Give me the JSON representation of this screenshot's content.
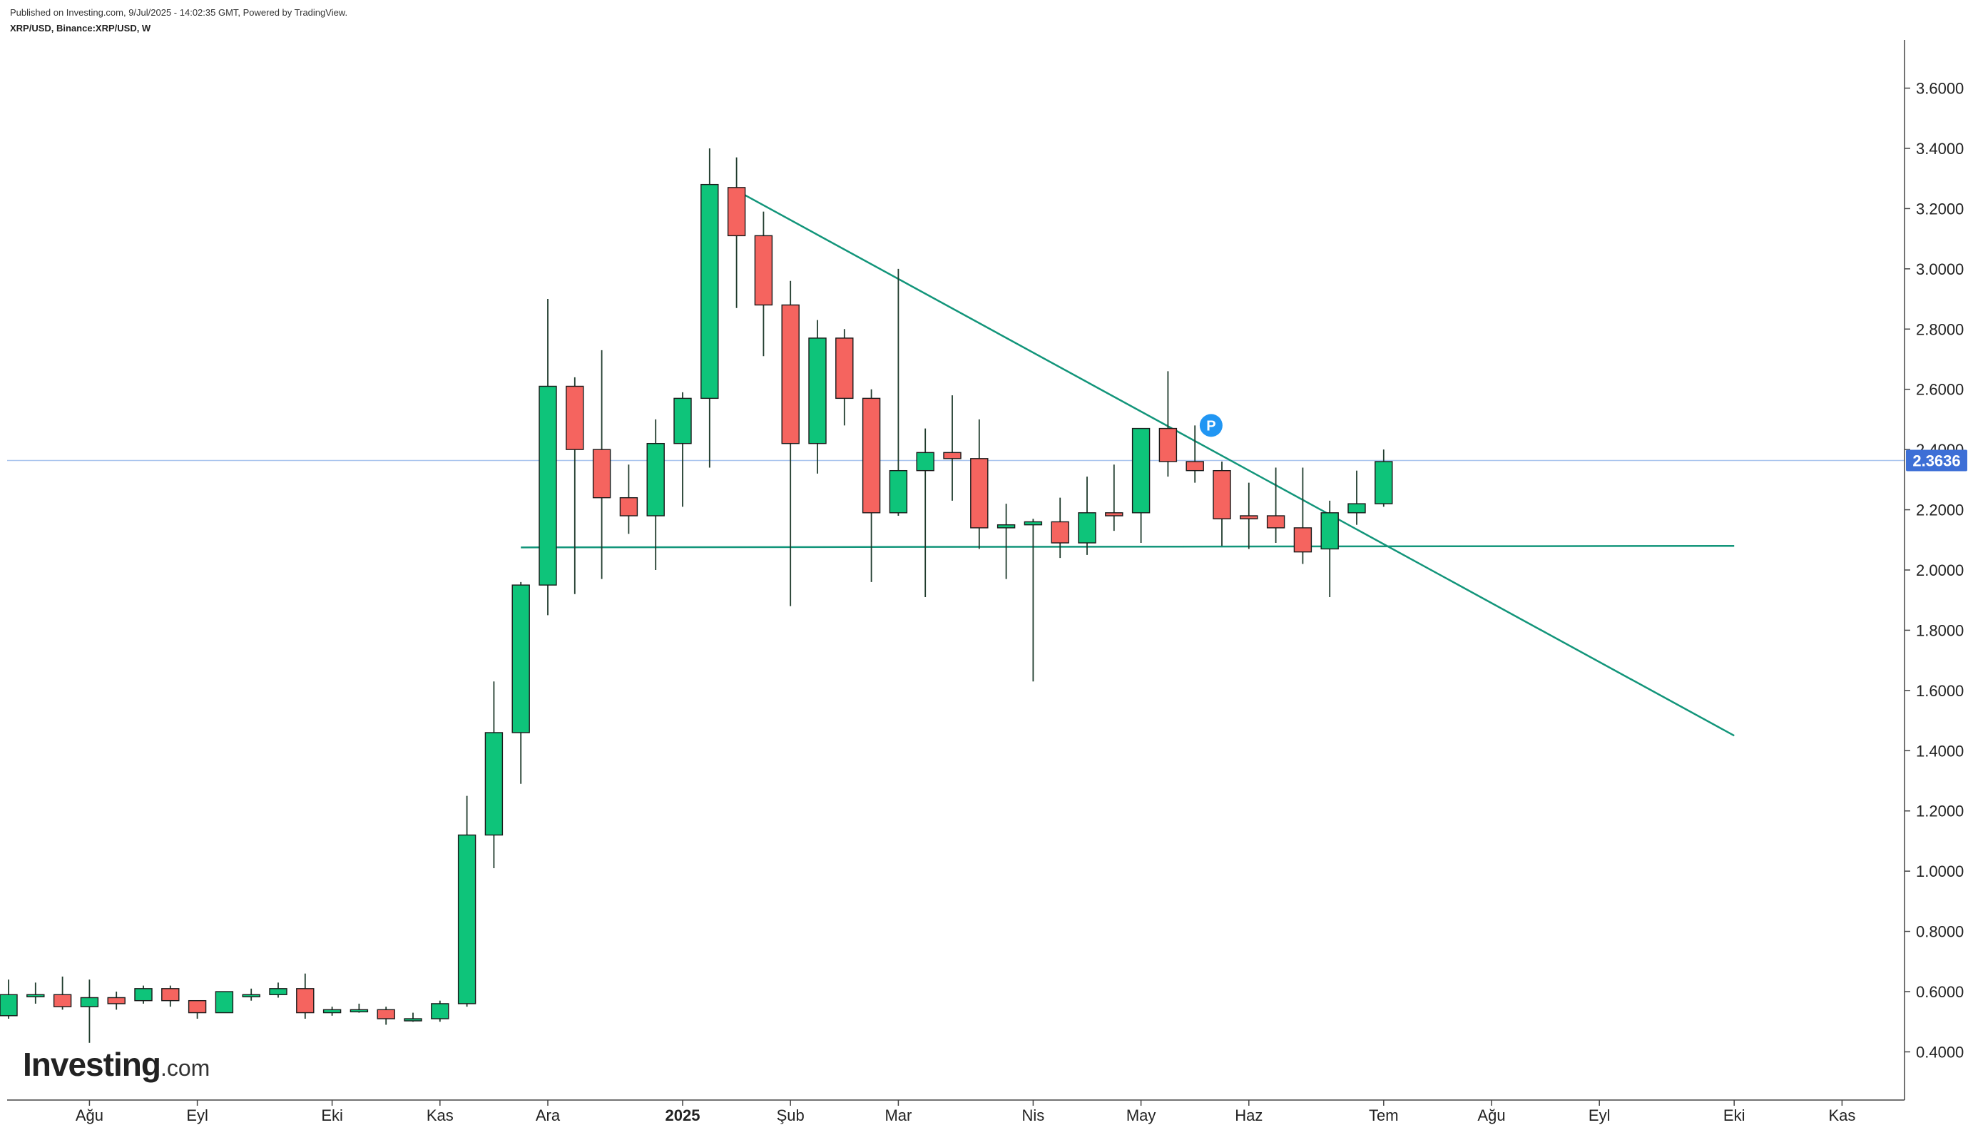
{
  "header": {
    "published": "Published on Investing.com, 9/Jul/2025 - 14:02:35 GMT, Powered by TradingView.",
    "symbol": "XRP/USD, Binance:XRP/USD, W"
  },
  "logo": {
    "brand": "Investing",
    "domain": ".com"
  },
  "colors": {
    "up": "#0ec47a",
    "down": "#f5645f",
    "wick": "#1f3b2c",
    "trendline": "#12957a",
    "price_line": "#a9c4ee",
    "price_tag": "#3d6fd6",
    "marker": "#2196f3"
  },
  "chart_data": {
    "type": "candlestick",
    "interval": "W",
    "ylim": [
      0.24,
      3.76
    ],
    "y_ticks": [
      "3.6000",
      "3.4000",
      "3.2000",
      "3.0000",
      "2.8000",
      "2.6000",
      "2.4000",
      "2.2000",
      "2.0000",
      "1.8000",
      "1.6000",
      "1.4000",
      "1.2000",
      "1.0000",
      "0.8000",
      "0.6000",
      "0.4000"
    ],
    "x_labels": [
      {
        "label": "Ağu",
        "week": 3.0,
        "bold": false
      },
      {
        "label": "Eyl",
        "week": 7.0,
        "bold": false
      },
      {
        "label": "Eki",
        "week": 12.0,
        "bold": false
      },
      {
        "label": "Kas",
        "week": 16.0,
        "bold": false
      },
      {
        "label": "Ara",
        "week": 20.0,
        "bold": false
      },
      {
        "label": "2025",
        "week": 25.0,
        "bold": true
      },
      {
        "label": "Şub",
        "week": 29.0,
        "bold": false
      },
      {
        "label": "Mar",
        "week": 33.0,
        "bold": false
      },
      {
        "label": "Nis",
        "week": 38.0,
        "bold": false
      },
      {
        "label": "May",
        "week": 42.0,
        "bold": false
      },
      {
        "label": "Haz",
        "week": 46.0,
        "bold": false
      },
      {
        "label": "Tem",
        "week": 51.0,
        "bold": false
      },
      {
        "label": "Ağu",
        "week": 55.0,
        "bold": false
      },
      {
        "label": "Eyl",
        "week": 59.0,
        "bold": false
      },
      {
        "label": "Eki",
        "week": 64.0,
        "bold": false
      },
      {
        "label": "Kas",
        "week": 68.0,
        "bold": false
      }
    ],
    "candles": [
      {
        "o": 0.52,
        "h": 0.64,
        "l": 0.51,
        "c": 0.59
      },
      {
        "o": 0.59,
        "h": 0.63,
        "l": 0.56,
        "c": 0.59
      },
      {
        "o": 0.59,
        "h": 0.65,
        "l": 0.54,
        "c": 0.55
      },
      {
        "o": 0.55,
        "h": 0.64,
        "l": 0.43,
        "c": 0.58
      },
      {
        "o": 0.58,
        "h": 0.6,
        "l": 0.54,
        "c": 0.56
      },
      {
        "o": 0.57,
        "h": 0.62,
        "l": 0.56,
        "c": 0.61
      },
      {
        "o": 0.61,
        "h": 0.62,
        "l": 0.55,
        "c": 0.57
      },
      {
        "o": 0.57,
        "h": 0.57,
        "l": 0.51,
        "c": 0.53
      },
      {
        "o": 0.53,
        "h": 0.6,
        "l": 0.53,
        "c": 0.6
      },
      {
        "o": 0.59,
        "h": 0.61,
        "l": 0.57,
        "c": 0.59
      },
      {
        "o": 0.59,
        "h": 0.63,
        "l": 0.58,
        "c": 0.61
      },
      {
        "o": 0.61,
        "h": 0.66,
        "l": 0.51,
        "c": 0.53
      },
      {
        "o": 0.53,
        "h": 0.55,
        "l": 0.52,
        "c": 0.54
      },
      {
        "o": 0.54,
        "h": 0.56,
        "l": 0.53,
        "c": 0.54
      },
      {
        "o": 0.54,
        "h": 0.55,
        "l": 0.49,
        "c": 0.51
      },
      {
        "o": 0.51,
        "h": 0.53,
        "l": 0.5,
        "c": 0.51
      },
      {
        "o": 0.51,
        "h": 0.57,
        "l": 0.5,
        "c": 0.56
      },
      {
        "o": 0.56,
        "h": 1.25,
        "l": 0.55,
        "c": 1.12
      },
      {
        "o": 1.12,
        "h": 1.63,
        "l": 1.01,
        "c": 1.46
      },
      {
        "o": 1.46,
        "h": 1.96,
        "l": 1.29,
        "c": 1.95
      },
      {
        "o": 1.95,
        "h": 2.9,
        "l": 1.85,
        "c": 2.61
      },
      {
        "o": 2.61,
        "h": 2.64,
        "l": 1.92,
        "c": 2.4
      },
      {
        "o": 2.4,
        "h": 2.73,
        "l": 1.97,
        "c": 2.24
      },
      {
        "o": 2.24,
        "h": 2.35,
        "l": 2.12,
        "c": 2.18
      },
      {
        "o": 2.18,
        "h": 2.5,
        "l": 2.0,
        "c": 2.42
      },
      {
        "o": 2.42,
        "h": 2.59,
        "l": 2.21,
        "c": 2.57
      },
      {
        "o": 2.57,
        "h": 3.4,
        "l": 2.34,
        "c": 3.28
      },
      {
        "o": 3.27,
        "h": 3.37,
        "l": 2.87,
        "c": 3.11
      },
      {
        "o": 3.11,
        "h": 3.19,
        "l": 2.71,
        "c": 2.88
      },
      {
        "o": 2.88,
        "h": 2.96,
        "l": 1.88,
        "c": 2.42
      },
      {
        "o": 2.42,
        "h": 2.83,
        "l": 2.32,
        "c": 2.77
      },
      {
        "o": 2.77,
        "h": 2.8,
        "l": 2.48,
        "c": 2.57
      },
      {
        "o": 2.57,
        "h": 2.6,
        "l": 1.96,
        "c": 2.19
      },
      {
        "o": 2.19,
        "h": 3.0,
        "l": 2.18,
        "c": 2.33
      },
      {
        "o": 2.33,
        "h": 2.47,
        "l": 1.91,
        "c": 2.39
      },
      {
        "o": 2.39,
        "h": 2.58,
        "l": 2.23,
        "c": 2.37
      },
      {
        "o": 2.37,
        "h": 2.5,
        "l": 2.07,
        "c": 2.14
      },
      {
        "o": 2.14,
        "h": 2.22,
        "l": 1.97,
        "c": 2.15
      },
      {
        "o": 2.15,
        "h": 2.17,
        "l": 1.63,
        "c": 2.16
      },
      {
        "o": 2.16,
        "h": 2.24,
        "l": 2.04,
        "c": 2.09
      },
      {
        "o": 2.09,
        "h": 2.31,
        "l": 2.05,
        "c": 2.19
      },
      {
        "o": 2.19,
        "h": 2.35,
        "l": 2.13,
        "c": 2.18
      },
      {
        "o": 2.19,
        "h": 2.47,
        "l": 2.09,
        "c": 2.47
      },
      {
        "o": 2.47,
        "h": 2.66,
        "l": 2.31,
        "c": 2.36
      },
      {
        "o": 2.36,
        "h": 2.48,
        "l": 2.29,
        "c": 2.33
      },
      {
        "o": 2.33,
        "h": 2.36,
        "l": 2.08,
        "c": 2.17
      },
      {
        "o": 2.18,
        "h": 2.29,
        "l": 2.07,
        "c": 2.17
      },
      {
        "o": 2.18,
        "h": 2.34,
        "l": 2.09,
        "c": 2.14
      },
      {
        "o": 2.14,
        "h": 2.34,
        "l": 2.02,
        "c": 2.06
      },
      {
        "o": 2.07,
        "h": 2.23,
        "l": 1.91,
        "c": 2.19
      },
      {
        "o": 2.19,
        "h": 2.33,
        "l": 2.15,
        "c": 2.22
      },
      {
        "o": 2.22,
        "h": 2.4,
        "l": 2.21,
        "c": 2.36
      }
    ],
    "current_price": 2.3636,
    "current_price_label": "2.3636",
    "trendlines": [
      {
        "kind": "descending",
        "from": {
          "week": 27.0,
          "price": 3.26
        },
        "to": {
          "week": 64.0,
          "price": 1.45
        }
      },
      {
        "kind": "horizontal",
        "from": {
          "week": 19.0,
          "price": 2.075
        },
        "to": {
          "week": 64.0,
          "price": 2.08
        }
      }
    ],
    "marker": {
      "week": 44.6,
      "price": 2.48,
      "label": "P"
    }
  }
}
